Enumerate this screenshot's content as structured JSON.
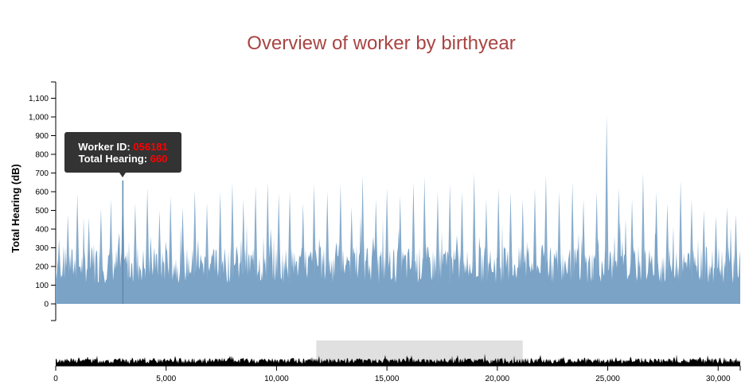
{
  "colors": {
    "title": "#a94442",
    "area": "#7ba3c6",
    "brush": "#e0e0e0",
    "context": "#000000",
    "tooltip_bg": "#333333",
    "tooltip_value": "#ff0000"
  },
  "chart_data": {
    "type": "area",
    "title": "Overview of worker by birthyear",
    "ylabel": "Total Hearing (dB)",
    "xlabel": "",
    "ylim": [
      0,
      1100
    ],
    "xlim": [
      0,
      31000
    ],
    "y_ticks": [
      "0",
      "100",
      "200",
      "300",
      "400",
      "500",
      "600",
      "700",
      "800",
      "900",
      "1,000",
      "1,100"
    ],
    "x_ticks": [
      "0",
      "5,000",
      "10,000",
      "15,000",
      "20,000",
      "25,000",
      "30,000"
    ],
    "brush_range": [
      11800,
      21150
    ],
    "highlight": {
      "worker_id": "056181",
      "total_hearing": 660,
      "x": 3040
    },
    "peaks": [
      {
        "x": 150,
        "y": 350
      },
      {
        "x": 550,
        "y": 480
      },
      {
        "x": 980,
        "y": 590
      },
      {
        "x": 1500,
        "y": 460
      },
      {
        "x": 2050,
        "y": 510
      },
      {
        "x": 2500,
        "y": 560
      },
      {
        "x": 3040,
        "y": 660
      },
      {
        "x": 3600,
        "y": 540
      },
      {
        "x": 4150,
        "y": 620
      },
      {
        "x": 4700,
        "y": 500
      },
      {
        "x": 5200,
        "y": 575
      },
      {
        "x": 5750,
        "y": 520
      },
      {
        "x": 6300,
        "y": 610
      },
      {
        "x": 6850,
        "y": 540
      },
      {
        "x": 7450,
        "y": 600
      },
      {
        "x": 8000,
        "y": 650
      },
      {
        "x": 8500,
        "y": 560
      },
      {
        "x": 9050,
        "y": 630
      },
      {
        "x": 9600,
        "y": 650
      },
      {
        "x": 10100,
        "y": 590
      },
      {
        "x": 10600,
        "y": 600
      },
      {
        "x": 11200,
        "y": 540
      },
      {
        "x": 11700,
        "y": 640
      },
      {
        "x": 12300,
        "y": 600
      },
      {
        "x": 12900,
        "y": 640
      },
      {
        "x": 13400,
        "y": 520
      },
      {
        "x": 13900,
        "y": 690
      },
      {
        "x": 14500,
        "y": 560
      },
      {
        "x": 15000,
        "y": 620
      },
      {
        "x": 15600,
        "y": 580
      },
      {
        "x": 16200,
        "y": 650
      },
      {
        "x": 16700,
        "y": 680
      },
      {
        "x": 17300,
        "y": 600
      },
      {
        "x": 17850,
        "y": 640
      },
      {
        "x": 18400,
        "y": 600
      },
      {
        "x": 18950,
        "y": 700
      },
      {
        "x": 19500,
        "y": 560
      },
      {
        "x": 20050,
        "y": 620
      },
      {
        "x": 20600,
        "y": 600
      },
      {
        "x": 21150,
        "y": 560
      },
      {
        "x": 21700,
        "y": 620
      },
      {
        "x": 22200,
        "y": 690
      },
      {
        "x": 22800,
        "y": 600
      },
      {
        "x": 23400,
        "y": 650
      },
      {
        "x": 23900,
        "y": 560
      },
      {
        "x": 24500,
        "y": 600
      },
      {
        "x": 24950,
        "y": 1010
      },
      {
        "x": 25500,
        "y": 620
      },
      {
        "x": 26100,
        "y": 560
      },
      {
        "x": 26600,
        "y": 700
      },
      {
        "x": 27200,
        "y": 600
      },
      {
        "x": 27700,
        "y": 540
      },
      {
        "x": 28300,
        "y": 660
      },
      {
        "x": 28800,
        "y": 560
      },
      {
        "x": 29350,
        "y": 500
      },
      {
        "x": 29900,
        "y": 470
      },
      {
        "x": 30400,
        "y": 520
      },
      {
        "x": 30800,
        "y": 480
      }
    ]
  }
}
